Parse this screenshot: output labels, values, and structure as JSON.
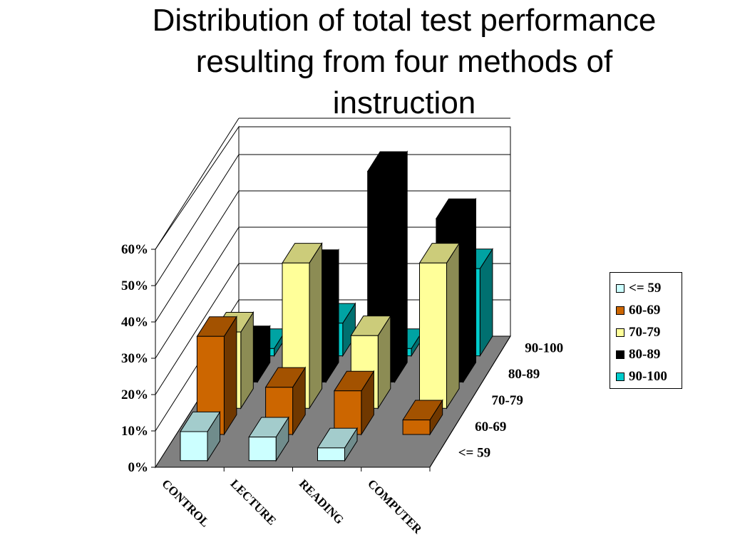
{
  "title_lines": [
    "Distribution of total test performance",
    "resulting from four methods of",
    "instruction"
  ],
  "chart_data": {
    "type": "bar",
    "title": "Distribution of total test performance resulting from four methods of instruction",
    "variant": "3d-grouped",
    "categories": [
      "CONTROL",
      "LECTURE",
      "READING",
      "COMPUTER"
    ],
    "series": [
      {
        "name": "<= 59",
        "color": "#ccffff",
        "values": [
          8,
          6.5,
          3.5,
          0
        ]
      },
      {
        "name": "60-69",
        "color": "#cc6600",
        "values": [
          27,
          13,
          12,
          4
        ]
      },
      {
        "name": "70-79",
        "color": "#ffff99",
        "values": [
          21,
          40,
          20,
          40
        ]
      },
      {
        "name": "80-89",
        "color": "#000000",
        "values": [
          10,
          31,
          58,
          45
        ]
      },
      {
        "name": "90-100",
        "color": "#00cccc",
        "values": [
          2,
          9,
          2,
          24
        ]
      }
    ],
    "ytick_labels": [
      "0%",
      "10%",
      "20%",
      "30%",
      "40%",
      "50%",
      "60%"
    ],
    "ylim": [
      0,
      60
    ],
    "grid": true,
    "legend_position": "right"
  }
}
